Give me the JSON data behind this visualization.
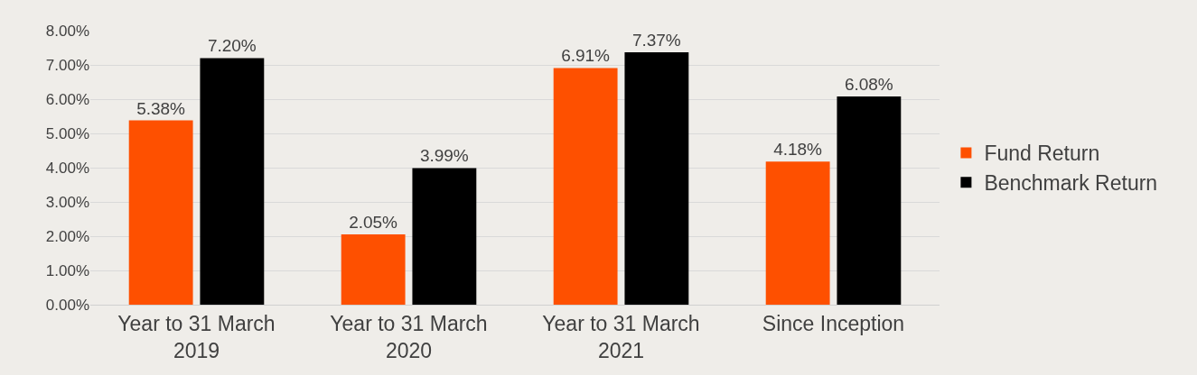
{
  "chart_data": {
    "type": "bar",
    "categories": [
      "Year to 31 March 2019",
      "Year to 31 March 2020",
      "Year to 31 March 2021",
      "Since Inception"
    ],
    "series": [
      {
        "name": "Fund Return",
        "color": "#fe5000",
        "values": [
          5.38,
          2.05,
          6.91,
          4.18
        ],
        "value_labels": [
          "5.38%",
          "2.05%",
          "6.91%",
          "4.18%"
        ]
      },
      {
        "name": "Benchmark Return",
        "color": "#000000",
        "values": [
          7.2,
          3.99,
          7.37,
          6.08
        ],
        "value_labels": [
          "7.20%",
          "3.99%",
          "7.37%",
          "6.08%"
        ]
      }
    ],
    "ylim": [
      0,
      8
    ],
    "yticks": [
      {
        "value": 0,
        "label": "0.00%"
      },
      {
        "value": 1,
        "label": "1.00%"
      },
      {
        "value": 2,
        "label": "2.00%"
      },
      {
        "value": 3,
        "label": "3.00%"
      },
      {
        "value": 4,
        "label": "4.00%"
      },
      {
        "value": 5,
        "label": "5.00%"
      },
      {
        "value": 6,
        "label": "6.00%"
      },
      {
        "value": 7,
        "label": "7.00%"
      },
      {
        "value": 8,
        "label": "8.00%"
      }
    ],
    "grid": "y",
    "legend": "right"
  }
}
